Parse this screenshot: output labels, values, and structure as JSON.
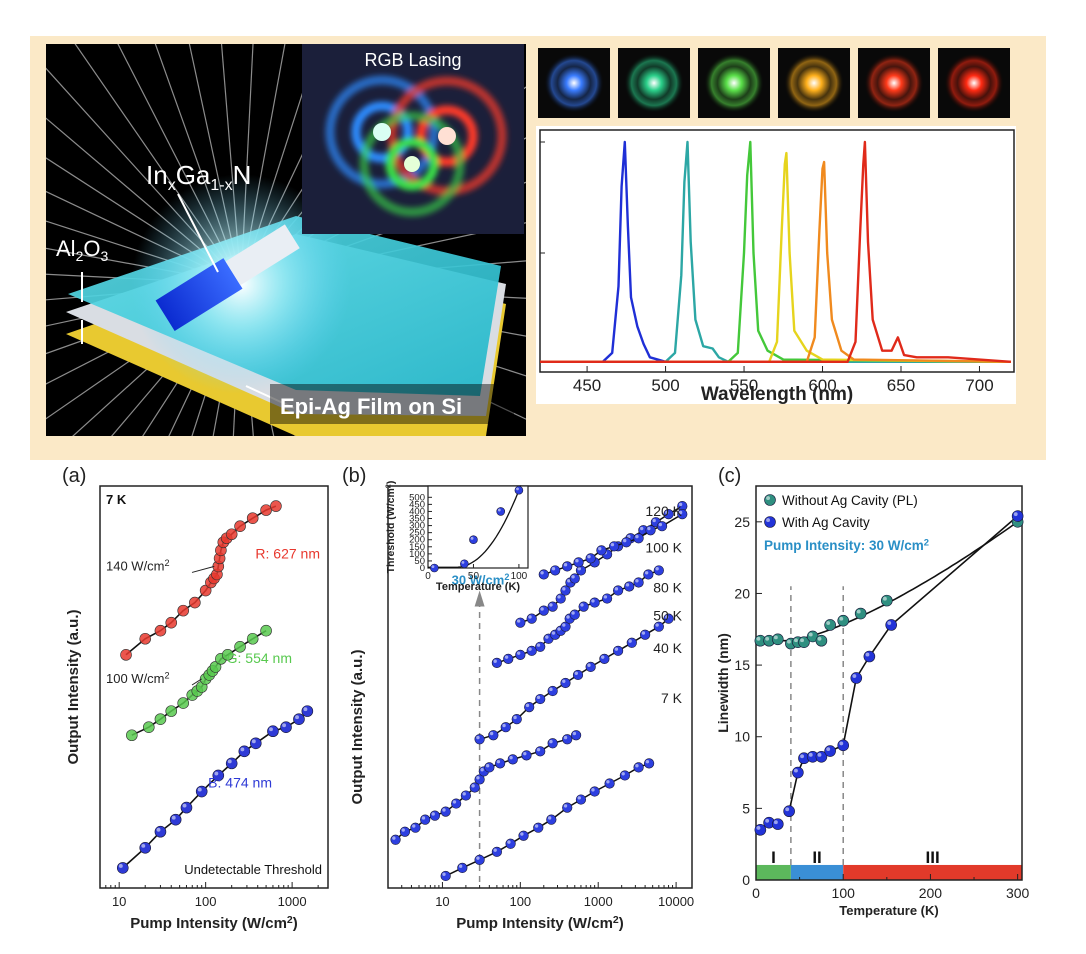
{
  "panel_labels": {
    "a": "(a)",
    "b": "(b)",
    "c": "(c)"
  },
  "photo": {
    "rgb_title": "RGB Lasing",
    "ingan_label": "InxGa1-xN",
    "al2o3_label": "Al2O3",
    "film_label": "Epi-Ag Film on Si"
  },
  "spectrum_tiles": [
    {
      "color": "#3a7cff",
      "name": "blue"
    },
    {
      "color": "#2bd08a",
      "name": "cyan-green"
    },
    {
      "color": "#5be04a",
      "name": "green"
    },
    {
      "color": "#ffb01c",
      "name": "orange"
    },
    {
      "color": "#ff3a1a",
      "name": "red"
    },
    {
      "color": "#ff2a12",
      "name": "deep-red"
    }
  ],
  "chart_data": [
    {
      "id": "spectra",
      "type": "line",
      "xlabel": "Wavelength (nm)",
      "ylabel": "",
      "xlim": [
        420,
        722
      ],
      "ylim": [
        0,
        1
      ],
      "xticks": [
        450,
        500,
        550,
        600,
        650,
        700
      ],
      "xtick_labels": [
        "450",
        "500",
        "550",
        "600",
        "650",
        "700"
      ],
      "series": [
        {
          "color": "#1f2fd6",
          "peak": 474,
          "x": [
            420,
            460,
            466,
            470,
            472,
            474,
            476,
            478,
            482,
            486,
            490,
            500,
            720
          ],
          "y": [
            0.01,
            0.01,
            0.05,
            0.35,
            0.8,
            1.0,
            0.62,
            0.3,
            0.17,
            0.09,
            0.03,
            0.01,
            0.01
          ]
        },
        {
          "color": "#2ca7a5",
          "peak": 514,
          "x": [
            420,
            500,
            506,
            510,
            512,
            514,
            516,
            519,
            524,
            530,
            534,
            540,
            720
          ],
          "y": [
            0.01,
            0.01,
            0.05,
            0.4,
            0.82,
            1.0,
            0.55,
            0.2,
            0.08,
            0.07,
            0.03,
            0.01,
            0.01
          ]
        },
        {
          "color": "#44c83a",
          "peak": 554,
          "x": [
            420,
            540,
            546,
            550,
            552,
            554,
            556,
            559,
            565,
            575,
            720
          ],
          "y": [
            0.01,
            0.01,
            0.05,
            0.5,
            0.85,
            1.0,
            0.5,
            0.15,
            0.06,
            0.02,
            0.01
          ]
        },
        {
          "color": "#e6d41d",
          "peak": 577,
          "x": [
            420,
            566,
            571,
            574,
            576,
            577,
            579,
            582,
            590,
            600,
            720
          ],
          "y": [
            0.01,
            0.01,
            0.1,
            0.6,
            0.9,
            0.95,
            0.5,
            0.15,
            0.06,
            0.02,
            0.01
          ]
        },
        {
          "color": "#f08a1e",
          "peak": 601,
          "x": [
            420,
            590,
            595,
            598,
            600,
            601,
            603,
            606,
            612,
            620,
            720
          ],
          "y": [
            0.01,
            0.01,
            0.12,
            0.6,
            0.88,
            0.91,
            0.5,
            0.2,
            0.06,
            0.02,
            0.01
          ]
        },
        {
          "color": "#e02a1a",
          "peak": 627,
          "x": [
            420,
            616,
            621,
            624,
            626,
            627,
            629,
            632,
            638,
            644,
            648,
            652,
            660,
            680,
            720
          ],
          "y": [
            0.01,
            0.01,
            0.1,
            0.6,
            0.9,
            1.0,
            0.55,
            0.2,
            0.06,
            0.06,
            0.12,
            0.04,
            0.03,
            0.03,
            0.01
          ]
        }
      ]
    },
    {
      "id": "a",
      "type": "scatter",
      "xlabel": "Pump Intensity (W/cm2)",
      "ylabel": "Output Intensity (a.u.)",
      "xscale": "log",
      "xlim": [
        6,
        2600
      ],
      "ylim": [
        0,
        1
      ],
      "xticks": [
        10,
        100,
        1000
      ],
      "xtick_labels": [
        "10",
        "100",
        "1000"
      ],
      "annotations": [
        "7 K",
        "140 W/cm2",
        "R: 627 nm",
        "100 W/cm2",
        "G: 554 nm",
        "B: 474 nm",
        "Undetectable Threshold"
      ],
      "series": [
        {
          "name": "R: 627 nm",
          "color": "#e8382e",
          "x": [
            12,
            20,
            30,
            40,
            55,
            75,
            100,
            115,
            125,
            135,
            140,
            145,
            150,
            160,
            175,
            200,
            250,
            350,
            500,
            650
          ],
          "y": [
            0.58,
            0.62,
            0.64,
            0.66,
            0.69,
            0.71,
            0.74,
            0.76,
            0.77,
            0.78,
            0.8,
            0.82,
            0.84,
            0.86,
            0.87,
            0.88,
            0.9,
            0.92,
            0.94,
            0.95
          ]
        },
        {
          "name": "G: 554 nm",
          "color": "#58c94f",
          "x": [
            14,
            22,
            30,
            40,
            55,
            70,
            80,
            90,
            100,
            110,
            120,
            130,
            150,
            180,
            250,
            350,
            500
          ],
          "y": [
            0.38,
            0.4,
            0.42,
            0.44,
            0.46,
            0.48,
            0.49,
            0.5,
            0.52,
            0.53,
            0.54,
            0.55,
            0.57,
            0.58,
            0.6,
            0.62,
            0.64
          ]
        },
        {
          "name": "B: 474 nm",
          "color": "#2e3ad6",
          "x": [
            11,
            20,
            30,
            45,
            60,
            90,
            140,
            200,
            280,
            380,
            600,
            850,
            1200,
            1500
          ],
          "y": [
            0.05,
            0.1,
            0.14,
            0.17,
            0.2,
            0.24,
            0.28,
            0.31,
            0.34,
            0.36,
            0.39,
            0.4,
            0.42,
            0.44
          ]
        }
      ]
    },
    {
      "id": "b",
      "type": "scatter",
      "xlabel": "Pump Intensity (W/cm2)",
      "ylabel": "Output Intensity (a.u.)",
      "xscale": "log",
      "xlim": [
        2,
        16000
      ],
      "ylim": [
        0,
        1
      ],
      "xticks": [
        10,
        100,
        1000,
        10000
      ],
      "xtick_labels": [
        "10",
        "100",
        "1000",
        "10000"
      ],
      "annotations": [
        "120 K",
        "100 K",
        "80 K",
        "50 K",
        "40 K",
        "7 K",
        "30 W/cm2"
      ],
      "series": [
        {
          "name": "7 K",
          "x": [
            11,
            18,
            30,
            50,
            75,
            110,
            170,
            250,
            400,
            600,
            900,
            1400,
            2200,
            3300,
            4500
          ],
          "y": [
            0.03,
            0.05,
            0.07,
            0.09,
            0.11,
            0.13,
            0.15,
            0.17,
            0.2,
            0.22,
            0.24,
            0.26,
            0.28,
            0.3,
            0.31
          ]
        },
        {
          "name": "40 K",
          "x": [
            2.5,
            3.3,
            4.5,
            6,
            8,
            11,
            15,
            20,
            26,
            30,
            34,
            40,
            55,
            80,
            120,
            180,
            260,
            400,
            520
          ],
          "y": [
            0.12,
            0.14,
            0.15,
            0.17,
            0.18,
            0.19,
            0.21,
            0.23,
            0.25,
            0.27,
            0.29,
            0.3,
            0.31,
            0.32,
            0.33,
            0.34,
            0.36,
            0.37,
            0.38
          ]
        },
        {
          "name": "50 K",
          "x": [
            30,
            45,
            65,
            90,
            130,
            180,
            260,
            380,
            550,
            800,
            1200,
            1800,
            2700,
            4000,
            6000,
            8000
          ],
          "y": [
            0.37,
            0.38,
            0.4,
            0.42,
            0.45,
            0.47,
            0.49,
            0.51,
            0.53,
            0.55,
            0.57,
            0.59,
            0.61,
            0.63,
            0.65,
            0.67
          ]
        },
        {
          "name": "80 K",
          "x": [
            50,
            70,
            100,
            140,
            180,
            230,
            280,
            330,
            380,
            430,
            500,
            650,
            900,
            1300,
            1800,
            2500,
            3300,
            4400,
            6000
          ],
          "y": [
            0.56,
            0.57,
            0.58,
            0.59,
            0.6,
            0.62,
            0.63,
            0.64,
            0.65,
            0.67,
            0.68,
            0.7,
            0.71,
            0.72,
            0.74,
            0.75,
            0.76,
            0.78,
            0.79
          ]
        },
        {
          "name": "100 K",
          "x": [
            100,
            140,
            200,
            260,
            330,
            380,
            440,
            500,
            600,
            900,
            1300,
            1800,
            2600,
            3800,
            5500,
            8000,
            12000
          ],
          "y": [
            0.66,
            0.67,
            0.69,
            0.7,
            0.72,
            0.74,
            0.76,
            0.77,
            0.79,
            0.81,
            0.83,
            0.85,
            0.87,
            0.89,
            0.91,
            0.93,
            0.95
          ]
        },
        {
          "name": "120 K",
          "x": [
            200,
            280,
            400,
            560,
            800,
            1100,
            1600,
            2300,
            3300,
            4700,
            6600,
            12000
          ],
          "y": [
            0.78,
            0.79,
            0.8,
            0.81,
            0.82,
            0.84,
            0.85,
            0.86,
            0.87,
            0.89,
            0.9,
            0.93
          ]
        }
      ],
      "inset": {
        "type": "scatter",
        "xlabel": "Temperature (K)",
        "ylabel": "Threshold (W/cm2)",
        "xlim": [
          0,
          110
        ],
        "ylim": [
          0,
          580
        ],
        "xticks": [
          0,
          50,
          100
        ],
        "yticks": [
          0,
          50,
          100,
          150,
          200,
          250,
          300,
          350,
          400,
          450,
          500
        ],
        "x": [
          7,
          40,
          50,
          80,
          100
        ],
        "y": [
          0,
          30,
          200,
          400,
          550
        ]
      }
    },
    {
      "id": "c",
      "type": "scatter",
      "xlabel": "Temperature (K)",
      "ylabel": "Linewidth (nm)",
      "xlim": [
        0,
        305
      ],
      "ylim": [
        0,
        27.5
      ],
      "xticks": [
        0,
        100,
        200,
        300
      ],
      "yticks": [
        0,
        5,
        10,
        15,
        20,
        25
      ],
      "legend": [
        "Without Ag Cavity (PL)",
        "With Ag Cavity"
      ],
      "pump_note": "Pump Intensity: 30 W/cm2",
      "regions": [
        {
          "label": "I",
          "from": 0,
          "to": 40,
          "color": "#5cb85c"
        },
        {
          "label": "II",
          "from": 40,
          "to": 100,
          "color": "#3a8fd6"
        },
        {
          "label": "III",
          "from": 100,
          "to": 305,
          "color": "#e23a2a"
        }
      ],
      "series": [
        {
          "name": "Without Ag Cavity (PL)",
          "color": "#2f8f80",
          "x": [
            5,
            15,
            25,
            40,
            48,
            55,
            65,
            75,
            85,
            100,
            120,
            150,
            300
          ],
          "y": [
            16.7,
            16.7,
            16.8,
            16.5,
            16.6,
            16.6,
            17.0,
            16.7,
            17.8,
            18.1,
            18.6,
            19.5,
            25.0
          ]
        },
        {
          "name": "With Ag Cavity",
          "color": "#2233d8",
          "x": [
            5,
            15,
            25,
            38,
            48,
            55,
            65,
            75,
            85,
            100,
            115,
            130,
            155,
            300
          ],
          "y": [
            3.5,
            4.0,
            3.9,
            4.8,
            7.5,
            8.5,
            8.6,
            8.6,
            9.0,
            9.4,
            14.1,
            15.6,
            17.8,
            25.4
          ]
        }
      ]
    }
  ]
}
